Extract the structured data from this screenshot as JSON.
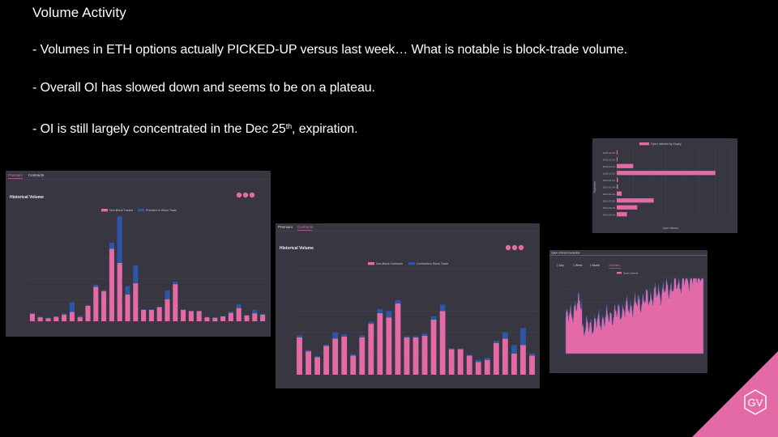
{
  "slide": {
    "title": "Volume Activity",
    "bullets": [
      {
        "text": "- Volumes in ETH options actually PICKED-UP versus last week… What is notable is block-trade volume."
      },
      {
        "text": "- Overall OI has slowed down and seems to be on a plateau."
      },
      {
        "text_before": "- OI is still largely concentrated in the Dec 25",
        "sup": "th",
        "text_after": ", expiration."
      }
    ]
  },
  "colors": {
    "background": "#000000",
    "panel": "#373641",
    "non_block": "#e46aa6",
    "block": "#2f55a8",
    "logo": "#e46aa6"
  },
  "logo": {
    "name": "gv-logo",
    "text": "GV"
  },
  "chart_data": [
    {
      "id": "premium-volume",
      "type": "bar",
      "stacked": true,
      "tabs": [
        "Premium",
        "Contracts"
      ],
      "active_tab": 0,
      "title": "Historical Volume",
      "series": [
        {
          "name": "Non-Block Traded",
          "color": "#e46aa6",
          "values": [
            85,
            45,
            35,
            50,
            75,
            105,
            45,
            175,
            390,
            340,
            820,
            660,
            305,
            430,
            130,
            130,
            160,
            250,
            420,
            130,
            115,
            115,
            45,
            40,
            55,
            95,
            150,
            65,
            90,
            75
          ]
        },
        {
          "name": "Premium in Block Trade",
          "color": "#2f55a8",
          "values": [
            10,
            5,
            5,
            5,
            15,
            110,
            15,
            10,
            25,
            15,
            70,
            530,
            95,
            200,
            5,
            5,
            5,
            100,
            30,
            5,
            5,
            5,
            5,
            5,
            5,
            15,
            40,
            10,
            40,
            10
          ]
        }
      ],
      "ylim": [
        0,
        1200
      ],
      "legend": "top-center",
      "grid": true
    },
    {
      "id": "contracts-volume",
      "type": "bar",
      "stacked": true,
      "tabs": [
        "Premium",
        "Contracts"
      ],
      "active_tab": 1,
      "title": "Historical Volume",
      "series": [
        {
          "name": "Non-Block Contracts",
          "color": "#e46aa6",
          "values": [
            88,
            55,
            41,
            68,
            85,
            90,
            45,
            88,
            120,
            145,
            135,
            168,
            88,
            88,
            92,
            130,
            150,
            60,
            60,
            45,
            30,
            35,
            75,
            85,
            50,
            70,
            45
          ]
        },
        {
          "name": "Contracts in Block Trade",
          "color": "#2f55a8",
          "values": [
            5,
            3,
            3,
            3,
            15,
            5,
            3,
            5,
            5,
            10,
            15,
            8,
            3,
            3,
            5,
            8,
            15,
            2,
            2,
            2,
            5,
            5,
            5,
            15,
            20,
            40,
            5
          ]
        }
      ],
      "ylim": [
        0,
        250
      ],
      "legend": "top-center",
      "grid": true
    },
    {
      "id": "oi-by-expiry",
      "type": "bar",
      "orientation": "horizontal",
      "title": "",
      "series": [
        {
          "name": "Open Interest by Expiry",
          "color": "#e46aa6",
          "values": [
            2,
            2,
            40,
            240,
            3,
            3,
            12,
            90,
            50,
            25
          ]
        }
      ],
      "categories": [
        "2020-12-18",
        "2020-12-19",
        "2020-12-11",
        "2020-12-25",
        "2021-01-01",
        "2021-01-08",
        "2021-01-29",
        "2021-03-26",
        "2021-06-25",
        "2021-09-24"
      ],
      "xlabel": "Open Interest",
      "ylabel": "Expiration",
      "xlim": [
        0,
        280
      ],
      "legend": "top-center",
      "grid": true
    },
    {
      "id": "open-interest-history",
      "type": "area",
      "header": "Open Interest Evolution",
      "tabs": [
        "1 Day",
        "1 Week",
        "1 Month",
        "3 Months"
      ],
      "active_tab": 3,
      "series": [
        {
          "name": "Open Interest",
          "color": "#e46aa6"
        }
      ],
      "ylim": [
        0,
        1
      ],
      "legend": "top-center",
      "grid": true
    }
  ]
}
